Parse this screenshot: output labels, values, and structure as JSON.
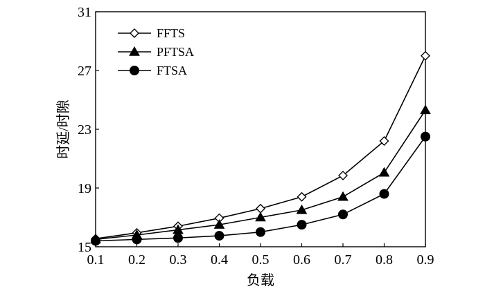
{
  "chart_data": {
    "type": "line",
    "title": "",
    "xlabel": "负载",
    "ylabel": "时延/时隙",
    "x": [
      0.1,
      0.2,
      0.3,
      0.4,
      0.5,
      0.6,
      0.7,
      0.8,
      0.9
    ],
    "x_tick_labels": [
      "0.1",
      "0.2",
      "0.3",
      "0.4",
      "0.5",
      "0.6",
      "0.7",
      "0.8",
      "0.9"
    ],
    "xlim": [
      0.1,
      0.9
    ],
    "y_ticks": [
      15,
      19,
      23,
      27,
      31
    ],
    "y_tick_labels": [
      "15",
      "19",
      "23",
      "27",
      "31"
    ],
    "ylim": [
      15,
      31
    ],
    "grid": false,
    "legend_position": "top-left",
    "series": [
      {
        "name": "FFTS",
        "marker": "diamond-open",
        "values": [
          15.55,
          15.95,
          16.4,
          16.95,
          17.6,
          18.4,
          19.85,
          22.2,
          28.0
        ]
      },
      {
        "name": "PFTSA",
        "marker": "triangle-filled",
        "values": [
          15.5,
          15.8,
          16.15,
          16.5,
          17.0,
          17.5,
          18.4,
          20.05,
          24.3
        ]
      },
      {
        "name": "FTSA",
        "marker": "circle-filled",
        "values": [
          15.4,
          15.5,
          15.6,
          15.75,
          16.0,
          16.5,
          17.2,
          18.6,
          22.5
        ]
      }
    ]
  }
}
